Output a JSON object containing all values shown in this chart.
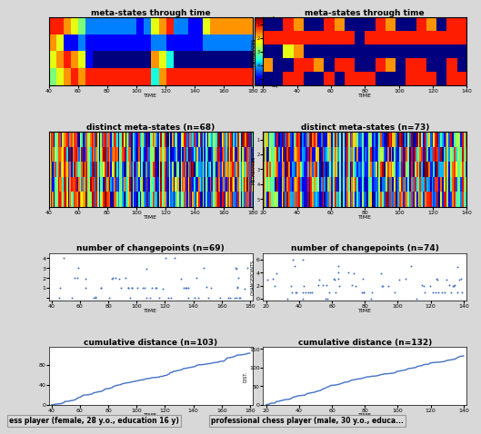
{
  "left_title1": "meta-states through time",
  "left_title2": "distinct meta-states (n=68)",
  "left_title3": "number of changepoints (n=69)",
  "left_title4": "cumulative distance (n=103)",
  "right_title1": "meta-states through time",
  "right_title2": "distinct meta-states (n=73)",
  "right_title3": "number of changepoints (n=74)",
  "right_title4": "cumulative distance (n=132)",
  "left_caption": "ess player (female, 28 y.o., education 16 y)",
  "right_caption": "professional chess player (male, 30 y.o., educa...",
  "xlabel": "TIME",
  "left_xticks": [
    40,
    60,
    80,
    100,
    120,
    140,
    160,
    180
  ],
  "right_xticks": [
    20,
    40,
    60,
    80,
    100,
    120,
    140
  ],
  "bg_color": "#d8d8d8",
  "title_fontsize": 6.5,
  "tick_fontsize": 4.5,
  "label_fontsize": 3.5,
  "caption_fontsize": 5.5,
  "line_color": "#4472c4",
  "scatter_color": "#4472c4"
}
